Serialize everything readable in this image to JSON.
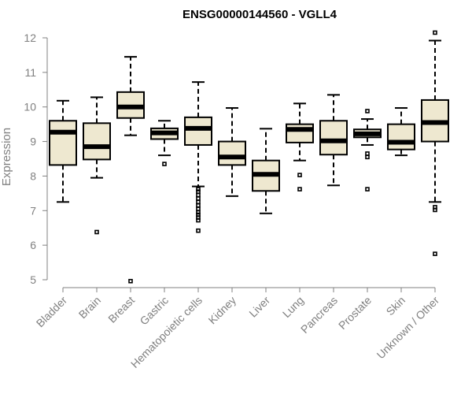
{
  "chart_data": {
    "type": "boxplot",
    "title": "ENSG00000144560 - VGLL4",
    "ylabel": "Expression",
    "xlabel": "",
    "ylim": [
      5,
      12
    ],
    "yticks": [
      5,
      6,
      7,
      8,
      9,
      10,
      11,
      12
    ],
    "categories": [
      "Bladder",
      "Brain",
      "Breast",
      "Gastric",
      "Hematopoietic cells",
      "Kidney",
      "Liver",
      "Lung",
      "Pancreas",
      "Prostate",
      "Skin",
      "Unknown / Other"
    ],
    "boxes": [
      {
        "name": "Bladder",
        "min": 7.25,
        "q1": 8.32,
        "median": 9.27,
        "q3": 9.6,
        "max": 10.18,
        "outliers": []
      },
      {
        "name": "Brain",
        "min": 7.95,
        "q1": 8.48,
        "median": 8.85,
        "q3": 9.53,
        "max": 10.28,
        "outliers": [
          6.38
        ]
      },
      {
        "name": "Breast",
        "min": 9.18,
        "q1": 9.68,
        "median": 10.0,
        "q3": 10.43,
        "max": 11.45,
        "outliers": [
          4.96
        ]
      },
      {
        "name": "Gastric",
        "min": 8.6,
        "q1": 9.07,
        "median": 9.25,
        "q3": 9.38,
        "max": 9.6,
        "outliers": [
          8.35
        ]
      },
      {
        "name": "Hematopoietic cells",
        "min": 7.7,
        "q1": 8.9,
        "median": 9.38,
        "q3": 9.7,
        "max": 10.72,
        "outliers": [
          7.62,
          7.55,
          7.45,
          7.35,
          7.25,
          7.15,
          7.05,
          6.95,
          6.88,
          6.8,
          6.72,
          6.42
        ]
      },
      {
        "name": "Kidney",
        "min": 7.42,
        "q1": 8.32,
        "median": 8.55,
        "q3": 9.0,
        "max": 9.97,
        "outliers": []
      },
      {
        "name": "Liver",
        "min": 6.92,
        "q1": 7.57,
        "median": 8.05,
        "q3": 8.45,
        "max": 9.37,
        "outliers": []
      },
      {
        "name": "Lung",
        "min": 8.45,
        "q1": 8.97,
        "median": 9.35,
        "q3": 9.5,
        "max": 10.1,
        "outliers": [
          8.03,
          7.62
        ]
      },
      {
        "name": "Pancreas",
        "min": 7.73,
        "q1": 8.62,
        "median": 9.02,
        "q3": 9.6,
        "max": 10.35,
        "outliers": []
      },
      {
        "name": "Prostate",
        "min": 8.9,
        "q1": 9.12,
        "median": 9.22,
        "q3": 9.35,
        "max": 9.65,
        "outliers": [
          9.88,
          8.65,
          8.55,
          7.62
        ]
      },
      {
        "name": "Skin",
        "min": 8.6,
        "q1": 8.77,
        "median": 8.98,
        "q3": 9.5,
        "max": 9.97,
        "outliers": []
      },
      {
        "name": "Unknown / Other",
        "min": 7.25,
        "q1": 9.0,
        "median": 9.55,
        "q3": 10.2,
        "max": 11.92,
        "outliers": [
          12.15,
          7.1,
          7.02,
          5.75
        ]
      }
    ],
    "colors": {
      "box_fill": "#EEE8D0",
      "stroke": "#000000",
      "axis": "#808080"
    }
  }
}
